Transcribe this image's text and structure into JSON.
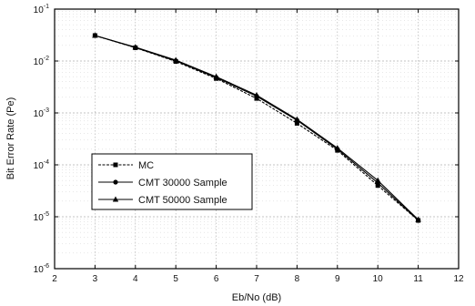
{
  "chart_data": {
    "type": "line",
    "title": "",
    "xlabel": "Eb/No (dB)",
    "ylabel": "Bit Error Rate (Pe)",
    "xlim": [
      2,
      12
    ],
    "ylim": [
      1e-06,
      0.1
    ],
    "yscale": "log",
    "grid": true,
    "legend_position": "lower-left",
    "x_ticks": [
      2,
      3,
      4,
      5,
      6,
      7,
      8,
      9,
      10,
      11,
      12
    ],
    "x_tick_labels": [
      "2",
      "3",
      "4",
      "5",
      "6",
      "7",
      "8",
      "9",
      "10",
      "11",
      "12"
    ],
    "y_ticks": [
      1e-06,
      1e-05,
      0.0001,
      0.001,
      0.01,
      0.1
    ],
    "y_tick_labels": [
      {
        "base": "10",
        "exp": "-6"
      },
      {
        "base": "10",
        "exp": "-5"
      },
      {
        "base": "10",
        "exp": "-4"
      },
      {
        "base": "10",
        "exp": "-3"
      },
      {
        "base": "10",
        "exp": "-2"
      },
      {
        "base": "10",
        "exp": "-1"
      }
    ],
    "x": [
      3,
      4,
      5,
      6,
      7,
      8,
      9,
      10,
      11
    ],
    "series": [
      {
        "name": "MC",
        "marker": "square",
        "line": "dashed",
        "values": [
          0.031,
          0.018,
          0.0098,
          0.0046,
          0.0019,
          0.00063,
          0.00019,
          4e-05,
          8.5e-06
        ]
      },
      {
        "name": "CMT 30000 Sample",
        "marker": "circle",
        "line": "solid",
        "values": [
          0.031,
          0.0182,
          0.0101,
          0.0048,
          0.0021,
          0.00072,
          0.0002,
          4.5e-05,
          8.5e-06
        ]
      },
      {
        "name": "CMT 50000 Sample",
        "marker": "triangle",
        "line": "solid",
        "values": [
          0.031,
          0.0185,
          0.0104,
          0.005,
          0.0022,
          0.00075,
          0.00021,
          5e-05,
          8.8e-06
        ]
      }
    ]
  }
}
